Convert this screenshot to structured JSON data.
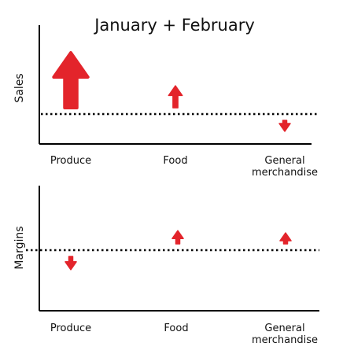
{
  "chart_data": [
    {
      "type": "arrow",
      "title": "January + February",
      "ylabel": "Sales",
      "categories": [
        "Produce",
        "Food",
        "General merchandise"
      ],
      "category_labels": [
        [
          "Produce"
        ],
        [
          "Food"
        ],
        [
          "General",
          "merchandise"
        ]
      ],
      "series": [
        {
          "direction": "up",
          "magnitude": 5
        },
        {
          "direction": "up",
          "magnitude": 2
        },
        {
          "direction": "down",
          "magnitude": 1
        }
      ],
      "color": "#e3242b"
    },
    {
      "type": "arrow",
      "ylabel": "Margins",
      "categories": [
        "Produce",
        "Food",
        "General merchandise"
      ],
      "category_labels": [
        [
          "Produce"
        ],
        [
          "Food"
        ],
        [
          "General",
          "merchandise"
        ]
      ],
      "series": [
        {
          "direction": "down",
          "magnitude": 1.2
        },
        {
          "direction": "up",
          "magnitude": 1.2
        },
        {
          "direction": "up",
          "magnitude": 1
        }
      ],
      "color": "#e3242b"
    }
  ]
}
